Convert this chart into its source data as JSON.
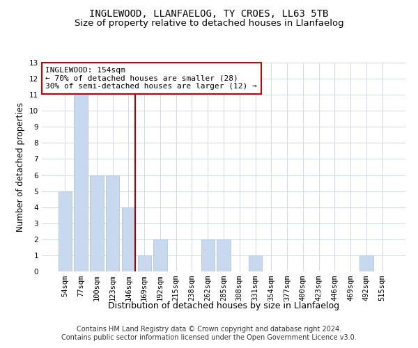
{
  "title": "INGLEWOOD, LLANFAELOG, TY CROES, LL63 5TB",
  "subtitle": "Size of property relative to detached houses in Llanfaelog",
  "xlabel": "Distribution of detached houses by size in Llanfaelog",
  "ylabel": "Number of detached properties",
  "categories": [
    "54sqm",
    "77sqm",
    "100sqm",
    "123sqm",
    "146sqm",
    "169sqm",
    "192sqm",
    "215sqm",
    "238sqm",
    "262sqm",
    "285sqm",
    "308sqm",
    "331sqm",
    "354sqm",
    "377sqm",
    "400sqm",
    "423sqm",
    "446sqm",
    "469sqm",
    "492sqm",
    "515sqm"
  ],
  "values": [
    5,
    11,
    6,
    6,
    4,
    1,
    2,
    0,
    0,
    2,
    2,
    0,
    1,
    0,
    0,
    0,
    0,
    0,
    0,
    1,
    0
  ],
  "bar_color": "#c8d8ee",
  "bar_edgecolor": "#b0c4de",
  "vline_x_index": 4,
  "vline_color": "#aa0000",
  "annotation_title": "INGLEWOOD: 154sqm",
  "annotation_line1": "← 70% of detached houses are smaller (28)",
  "annotation_line2": "30% of semi-detached houses are larger (12) →",
  "annotation_box_facecolor": "#ffffff",
  "annotation_box_edgecolor": "#cc0000",
  "ylim": [
    0,
    13
  ],
  "yticks": [
    0,
    1,
    2,
    3,
    4,
    5,
    6,
    7,
    8,
    9,
    10,
    11,
    12,
    13
  ],
  "footer_line1": "Contains HM Land Registry data © Crown copyright and database right 2024.",
  "footer_line2": "Contains public sector information licensed under the Open Government Licence v3.0.",
  "background_color": "#ffffff",
  "grid_color": "#d0d8eb",
  "title_fontsize": 10,
  "subtitle_fontsize": 9.5,
  "xlabel_fontsize": 9,
  "ylabel_fontsize": 8.5,
  "tick_fontsize": 7.5,
  "annotation_fontsize": 8,
  "footer_fontsize": 7
}
